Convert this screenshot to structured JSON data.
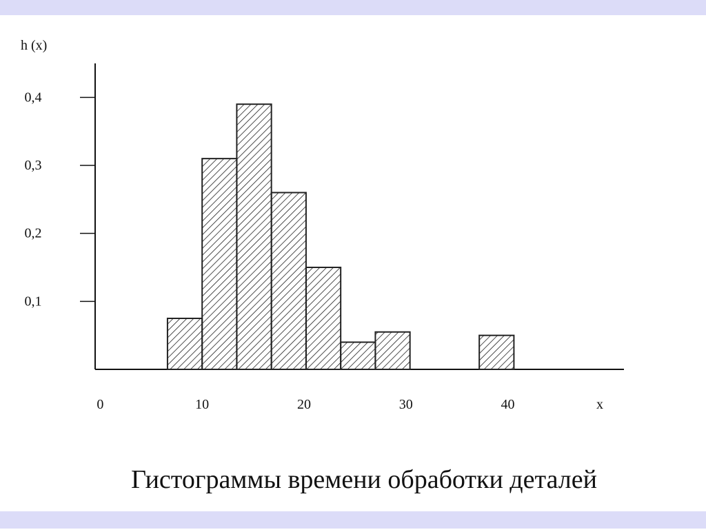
{
  "chart_data": {
    "type": "histogram",
    "title": "Гистограммы времени обработки деталей",
    "y_label": "h (x)",
    "x_label": "x",
    "bins": [
      6.6,
      10,
      13.4,
      16.8,
      20.2,
      23.6,
      27,
      30.4,
      33.8,
      37.2,
      40.6
    ],
    "counts": [
      0.075,
      0.31,
      0.39,
      0.26,
      0.15,
      0.04,
      0.055,
      0,
      0,
      0.05
    ],
    "color": "#222222",
    "xlim": [
      -0.5,
      51.4
    ],
    "ylim": [
      0,
      0.45
    ],
    "xticks": [
      0,
      10,
      20,
      30,
      40
    ],
    "yticks": [
      {
        "value": 0.1,
        "label": "0,1"
      },
      {
        "value": 0.2,
        "label": "0,2"
      },
      {
        "value": 0.3,
        "label": "0,3"
      },
      {
        "value": 0.4,
        "label": "0,4"
      }
    ]
  }
}
